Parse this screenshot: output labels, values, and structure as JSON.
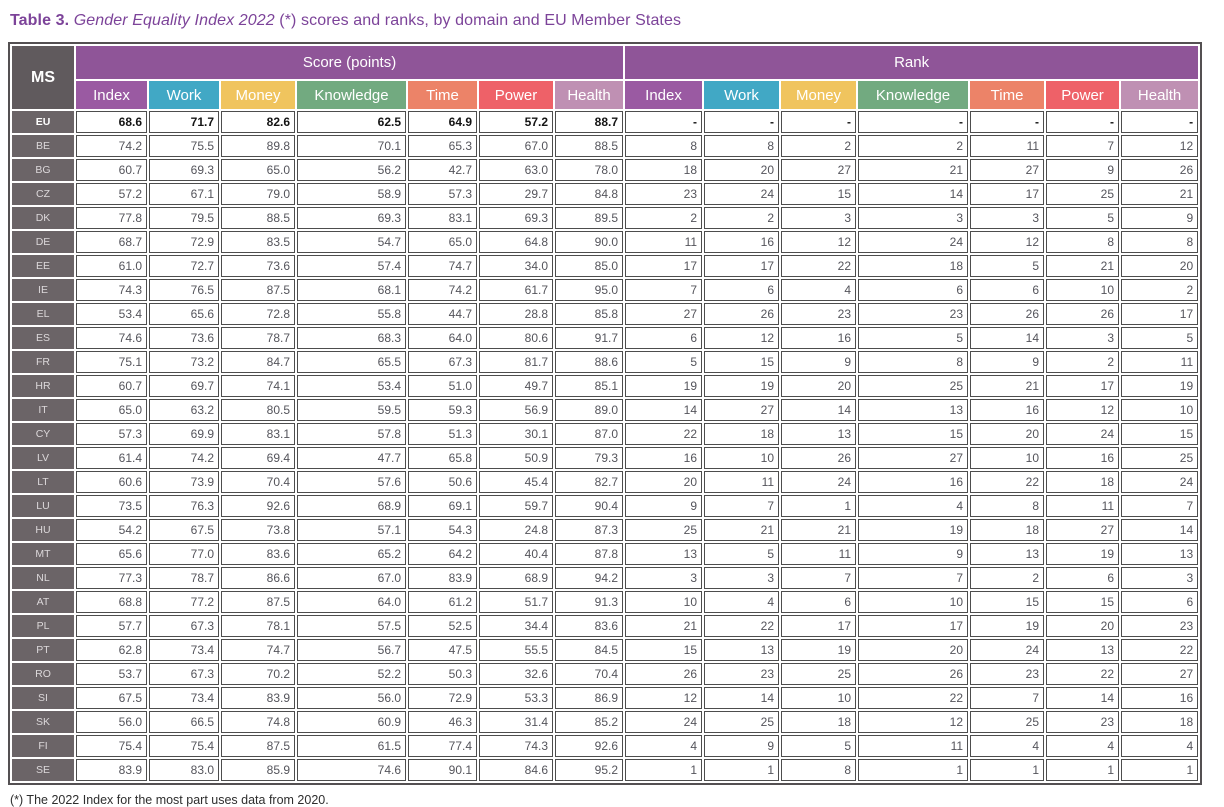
{
  "page": {
    "title": {
      "label": "Table 3.",
      "subject": " Gender Equality Index 2022",
      "rest": " (*) scores and ranks, by domain and EU Member States"
    },
    "footnote": "(*) The 2022 Index for the most part uses data from 2020."
  },
  "table": {
    "ms_header": "MS",
    "groups": [
      {
        "label": "Score (points)"
      },
      {
        "label": "Rank"
      }
    ],
    "domains": [
      "Index",
      "Work",
      "Money",
      "Knowledge",
      "Time",
      "Power",
      "Health"
    ],
    "colors": {
      "title_text": "#7c4399",
      "group_band_bg": "#8f5598",
      "ms_header_bg": "#605a5d",
      "row_label_bg": "#6b6467",
      "domain_colors": {
        "Index": "#9a5aa2",
        "Work": "#41a8c5",
        "Money": "#f0c45e",
        "Knowledge": "#72aa80",
        "Time": "#ec8368",
        "Power": "#ee6168",
        "Health": "#bf90b3"
      }
    },
    "rows": [
      {
        "ms": "EU",
        "emphasis": true,
        "scores": [
          "68.6",
          "71.7",
          "82.6",
          "62.5",
          "64.9",
          "57.2",
          "88.7"
        ],
        "ranks": [
          "-",
          "-",
          "-",
          "-",
          "-",
          "-",
          "-"
        ]
      },
      {
        "ms": "BE",
        "emphasis": false,
        "scores": [
          "74.2",
          "75.5",
          "89.8",
          "70.1",
          "65.3",
          "67.0",
          "88.5"
        ],
        "ranks": [
          "8",
          "8",
          "2",
          "2",
          "11",
          "7",
          "12"
        ]
      },
      {
        "ms": "BG",
        "emphasis": false,
        "scores": [
          "60.7",
          "69.3",
          "65.0",
          "56.2",
          "42.7",
          "63.0",
          "78.0"
        ],
        "ranks": [
          "18",
          "20",
          "27",
          "21",
          "27",
          "9",
          "26"
        ]
      },
      {
        "ms": "CZ",
        "emphasis": false,
        "scores": [
          "57.2",
          "67.1",
          "79.0",
          "58.9",
          "57.3",
          "29.7",
          "84.8"
        ],
        "ranks": [
          "23",
          "24",
          "15",
          "14",
          "17",
          "25",
          "21"
        ]
      },
      {
        "ms": "DK",
        "emphasis": false,
        "scores": [
          "77.8",
          "79.5",
          "88.5",
          "69.3",
          "83.1",
          "69.3",
          "89.5"
        ],
        "ranks": [
          "2",
          "2",
          "3",
          "3",
          "3",
          "5",
          "9"
        ]
      },
      {
        "ms": "DE",
        "emphasis": false,
        "scores": [
          "68.7",
          "72.9",
          "83.5",
          "54.7",
          "65.0",
          "64.8",
          "90.0"
        ],
        "ranks": [
          "11",
          "16",
          "12",
          "24",
          "12",
          "8",
          "8"
        ]
      },
      {
        "ms": "EE",
        "emphasis": false,
        "scores": [
          "61.0",
          "72.7",
          "73.6",
          "57.4",
          "74.7",
          "34.0",
          "85.0"
        ],
        "ranks": [
          "17",
          "17",
          "22",
          "18",
          "5",
          "21",
          "20"
        ]
      },
      {
        "ms": "IE",
        "emphasis": false,
        "scores": [
          "74.3",
          "76.5",
          "87.5",
          "68.1",
          "74.2",
          "61.7",
          "95.0"
        ],
        "ranks": [
          "7",
          "6",
          "4",
          "6",
          "6",
          "10",
          "2"
        ]
      },
      {
        "ms": "EL",
        "emphasis": false,
        "scores": [
          "53.4",
          "65.6",
          "72.8",
          "55.8",
          "44.7",
          "28.8",
          "85.8"
        ],
        "ranks": [
          "27",
          "26",
          "23",
          "23",
          "26",
          "26",
          "17"
        ]
      },
      {
        "ms": "ES",
        "emphasis": false,
        "scores": [
          "74.6",
          "73.6",
          "78.7",
          "68.3",
          "64.0",
          "80.6",
          "91.7"
        ],
        "ranks": [
          "6",
          "12",
          "16",
          "5",
          "14",
          "3",
          "5"
        ]
      },
      {
        "ms": "FR",
        "emphasis": false,
        "scores": [
          "75.1",
          "73.2",
          "84.7",
          "65.5",
          "67.3",
          "81.7",
          "88.6"
        ],
        "ranks": [
          "5",
          "15",
          "9",
          "8",
          "9",
          "2",
          "11"
        ]
      },
      {
        "ms": "HR",
        "emphasis": false,
        "scores": [
          "60.7",
          "69.7",
          "74.1",
          "53.4",
          "51.0",
          "49.7",
          "85.1"
        ],
        "ranks": [
          "19",
          "19",
          "20",
          "25",
          "21",
          "17",
          "19"
        ]
      },
      {
        "ms": "IT",
        "emphasis": false,
        "scores": [
          "65.0",
          "63.2",
          "80.5",
          "59.5",
          "59.3",
          "56.9",
          "89.0"
        ],
        "ranks": [
          "14",
          "27",
          "14",
          "13",
          "16",
          "12",
          "10"
        ]
      },
      {
        "ms": "CY",
        "emphasis": false,
        "scores": [
          "57.3",
          "69.9",
          "83.1",
          "57.8",
          "51.3",
          "30.1",
          "87.0"
        ],
        "ranks": [
          "22",
          "18",
          "13",
          "15",
          "20",
          "24",
          "15"
        ]
      },
      {
        "ms": "LV",
        "emphasis": false,
        "scores": [
          "61.4",
          "74.2",
          "69.4",
          "47.7",
          "65.8",
          "50.9",
          "79.3"
        ],
        "ranks": [
          "16",
          "10",
          "26",
          "27",
          "10",
          "16",
          "25"
        ]
      },
      {
        "ms": "LT",
        "emphasis": false,
        "scores": [
          "60.6",
          "73.9",
          "70.4",
          "57.6",
          "50.6",
          "45.4",
          "82.7"
        ],
        "ranks": [
          "20",
          "11",
          "24",
          "16",
          "22",
          "18",
          "24"
        ]
      },
      {
        "ms": "LU",
        "emphasis": false,
        "scores": [
          "73.5",
          "76.3",
          "92.6",
          "68.9",
          "69.1",
          "59.7",
          "90.4"
        ],
        "ranks": [
          "9",
          "7",
          "1",
          "4",
          "8",
          "11",
          "7"
        ]
      },
      {
        "ms": "HU",
        "emphasis": false,
        "scores": [
          "54.2",
          "67.5",
          "73.8",
          "57.1",
          "54.3",
          "24.8",
          "87.3"
        ],
        "ranks": [
          "25",
          "21",
          "21",
          "19",
          "18",
          "27",
          "14"
        ]
      },
      {
        "ms": "MT",
        "emphasis": false,
        "scores": [
          "65.6",
          "77.0",
          "83.6",
          "65.2",
          "64.2",
          "40.4",
          "87.8"
        ],
        "ranks": [
          "13",
          "5",
          "11",
          "9",
          "13",
          "19",
          "13"
        ]
      },
      {
        "ms": "NL",
        "emphasis": false,
        "scores": [
          "77.3",
          "78.7",
          "86.6",
          "67.0",
          "83.9",
          "68.9",
          "94.2"
        ],
        "ranks": [
          "3",
          "3",
          "7",
          "7",
          "2",
          "6",
          "3"
        ]
      },
      {
        "ms": "AT",
        "emphasis": false,
        "scores": [
          "68.8",
          "77.2",
          "87.5",
          "64.0",
          "61.2",
          "51.7",
          "91.3"
        ],
        "ranks": [
          "10",
          "4",
          "6",
          "10",
          "15",
          "15",
          "6"
        ]
      },
      {
        "ms": "PL",
        "emphasis": false,
        "scores": [
          "57.7",
          "67.3",
          "78.1",
          "57.5",
          "52.5",
          "34.4",
          "83.6"
        ],
        "ranks": [
          "21",
          "22",
          "17",
          "17",
          "19",
          "20",
          "23"
        ]
      },
      {
        "ms": "PT",
        "emphasis": false,
        "scores": [
          "62.8",
          "73.4",
          "74.7",
          "56.7",
          "47.5",
          "55.5",
          "84.5"
        ],
        "ranks": [
          "15",
          "13",
          "19",
          "20",
          "24",
          "13",
          "22"
        ]
      },
      {
        "ms": "RO",
        "emphasis": false,
        "scores": [
          "53.7",
          "67.3",
          "70.2",
          "52.2",
          "50.3",
          "32.6",
          "70.4"
        ],
        "ranks": [
          "26",
          "23",
          "25",
          "26",
          "23",
          "22",
          "27"
        ]
      },
      {
        "ms": "SI",
        "emphasis": false,
        "scores": [
          "67.5",
          "73.4",
          "83.9",
          "56.0",
          "72.9",
          "53.3",
          "86.9"
        ],
        "ranks": [
          "12",
          "14",
          "10",
          "22",
          "7",
          "14",
          "16"
        ]
      },
      {
        "ms": "SK",
        "emphasis": false,
        "scores": [
          "56.0",
          "66.5",
          "74.8",
          "60.9",
          "46.3",
          "31.4",
          "85.2"
        ],
        "ranks": [
          "24",
          "25",
          "18",
          "12",
          "25",
          "23",
          "18"
        ]
      },
      {
        "ms": "FI",
        "emphasis": false,
        "scores": [
          "75.4",
          "75.4",
          "87.5",
          "61.5",
          "77.4",
          "74.3",
          "92.6"
        ],
        "ranks": [
          "4",
          "9",
          "5",
          "11",
          "4",
          "4",
          "4"
        ]
      },
      {
        "ms": "SE",
        "emphasis": false,
        "scores": [
          "83.9",
          "83.0",
          "85.9",
          "74.6",
          "90.1",
          "84.6",
          "95.2"
        ],
        "ranks": [
          "1",
          "1",
          "8",
          "1",
          "1",
          "1",
          "1"
        ]
      }
    ]
  }
}
